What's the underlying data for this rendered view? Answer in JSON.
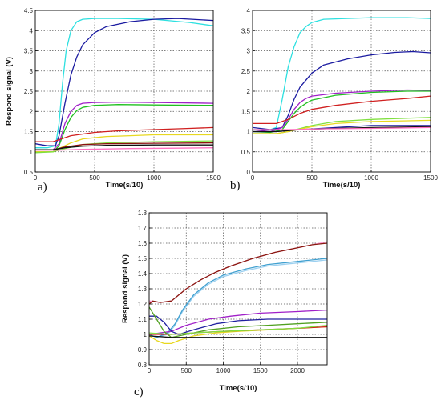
{
  "chart_data": [
    {
      "type": "line",
      "panel_label": "a)",
      "xlabel": "Time(s/10)",
      "ylabel": "Respond signal (V)",
      "xlim": [
        0,
        1500
      ],
      "ylim": [
        0.5,
        4.5
      ],
      "xticks": [
        "0",
        "500",
        "1000",
        "1500"
      ],
      "yticks": [
        "0.5",
        "1",
        "1.5",
        "2",
        "2.5",
        "3",
        "3.5",
        "4",
        "4.5"
      ],
      "grid": true,
      "series": [
        {
          "color": "#2ee0e0",
          "x": [
            0,
            100,
            170,
            200,
            230,
            260,
            300,
            350,
            400,
            500,
            700,
            1000,
            1300,
            1500
          ],
          "y": [
            1.1,
            1.1,
            1.15,
            1.7,
            2.7,
            3.5,
            4.0,
            4.22,
            4.28,
            4.3,
            4.3,
            4.28,
            4.2,
            4.12
          ]
        },
        {
          "color": "#1a1aa0",
          "x": [
            0,
            100,
            170,
            200,
            250,
            300,
            350,
            400,
            500,
            600,
            800,
            1000,
            1200,
            1500
          ],
          "y": [
            1.2,
            1.15,
            1.15,
            1.4,
            2.2,
            2.9,
            3.35,
            3.65,
            3.95,
            4.1,
            4.22,
            4.28,
            4.3,
            4.25
          ]
        },
        {
          "color": "#a020c8",
          "x": [
            0,
            150,
            200,
            250,
            300,
            350,
            400,
            500,
            700,
            1000,
            1500
          ],
          "y": [
            1.05,
            1.05,
            1.2,
            1.7,
            2.0,
            2.15,
            2.2,
            2.22,
            2.23,
            2.22,
            2.2
          ]
        },
        {
          "color": "#20c020",
          "x": [
            0,
            150,
            200,
            250,
            300,
            350,
            400,
            500,
            700,
            1000,
            1500
          ],
          "y": [
            1.0,
            1.0,
            1.15,
            1.55,
            1.85,
            2.02,
            2.1,
            2.15,
            2.17,
            2.16,
            2.15
          ]
        },
        {
          "color": "#d02020",
          "x": [
            0,
            50,
            150,
            200,
            300,
            500,
            700,
            1000,
            1300,
            1500
          ],
          "y": [
            1.25,
            1.25,
            1.25,
            1.3,
            1.4,
            1.48,
            1.52,
            1.55,
            1.58,
            1.6
          ]
        },
        {
          "color": "#e8d820",
          "x": [
            0,
            150,
            200,
            300,
            400,
            600,
            800,
            1000,
            1500
          ],
          "y": [
            1.0,
            1.0,
            1.08,
            1.22,
            1.32,
            1.38,
            1.4,
            1.42,
            1.42
          ]
        },
        {
          "color": "#80e040",
          "x": [
            0,
            150,
            250,
            400,
            600,
            1000,
            1500
          ],
          "y": [
            0.98,
            1.0,
            1.08,
            1.18,
            1.22,
            1.25,
            1.27
          ]
        },
        {
          "color": "#8c1010",
          "x": [
            0,
            150,
            250,
            400,
            600,
            1000,
            1500
          ],
          "y": [
            1.05,
            1.05,
            1.12,
            1.18,
            1.2,
            1.21,
            1.22
          ]
        },
        {
          "color": "#101010",
          "x": [
            0,
            150,
            250,
            400,
            600,
            1000,
            1500
          ],
          "y": [
            1.05,
            1.05,
            1.1,
            1.14,
            1.16,
            1.17,
            1.17
          ]
        },
        {
          "color": "#ff70c0",
          "x": [
            0,
            200,
            400,
            800,
            1200,
            1500
          ],
          "y": [
            1.04,
            1.04,
            1.06,
            1.08,
            1.09,
            1.1
          ]
        }
      ]
    },
    {
      "type": "line",
      "panel_label": "b)",
      "xlabel": "Time(s/10)",
      "ylabel": "",
      "xlim": [
        0,
        1500
      ],
      "ylim": [
        0,
        4
      ],
      "xticks": [
        "0",
        "500",
        "1000",
        "1500"
      ],
      "yticks": [
        "0",
        "0.5",
        "1",
        "1.5",
        "2",
        "2.5",
        "3",
        "3.5",
        "4"
      ],
      "grid": true,
      "series": [
        {
          "color": "#2ee0e0",
          "x": [
            0,
            150,
            200,
            250,
            300,
            350,
            400,
            450,
            500,
            600,
            800,
            1000,
            1300,
            1500
          ],
          "y": [
            1.05,
            1.05,
            1.1,
            1.8,
            2.6,
            3.1,
            3.45,
            3.6,
            3.7,
            3.78,
            3.8,
            3.82,
            3.82,
            3.8
          ]
        },
        {
          "color": "#1a1aa0",
          "x": [
            0,
            150,
            250,
            300,
            350,
            400,
            500,
            600,
            800,
            1000,
            1200,
            1350,
            1500
          ],
          "y": [
            1.1,
            1.05,
            1.1,
            1.4,
            1.8,
            2.1,
            2.45,
            2.65,
            2.8,
            2.9,
            2.96,
            2.98,
            2.95
          ]
        },
        {
          "color": "#a020c8",
          "x": [
            0,
            150,
            250,
            300,
            350,
            400,
            450,
            500,
            700,
            1000,
            1300,
            1500
          ],
          "y": [
            1.05,
            1.0,
            1.1,
            1.3,
            1.55,
            1.72,
            1.82,
            1.88,
            1.95,
            2.0,
            2.03,
            2.02
          ]
        },
        {
          "color": "#20c020",
          "x": [
            0,
            150,
            250,
            300,
            350,
            400,
            450,
            500,
            700,
            1000,
            1300,
            1500
          ],
          "y": [
            1.0,
            0.98,
            1.05,
            1.25,
            1.45,
            1.6,
            1.7,
            1.78,
            1.9,
            1.97,
            2.0,
            2.0
          ]
        },
        {
          "color": "#d02020",
          "x": [
            0,
            100,
            200,
            300,
            400,
            500,
            700,
            1000,
            1300,
            1500
          ],
          "y": [
            1.2,
            1.2,
            1.2,
            1.3,
            1.45,
            1.55,
            1.65,
            1.75,
            1.82,
            1.88
          ]
        },
        {
          "color": "#80e040",
          "x": [
            0,
            200,
            300,
            500,
            700,
            1000,
            1500
          ],
          "y": [
            0.95,
            0.95,
            1.0,
            1.15,
            1.25,
            1.3,
            1.35
          ]
        },
        {
          "color": "#e8d820",
          "x": [
            0,
            200,
            300,
            500,
            700,
            1000,
            1500
          ],
          "y": [
            0.95,
            0.95,
            1.0,
            1.12,
            1.2,
            1.25,
            1.28
          ]
        },
        {
          "color": "#1a1aa0",
          "x": [
            0,
            200,
            400,
            700,
            1000,
            1500
          ],
          "y": [
            1.0,
            1.0,
            1.05,
            1.1,
            1.15,
            1.15
          ]
        },
        {
          "color": "#101010",
          "x": [
            0,
            200,
            400,
            700,
            1000,
            1500
          ],
          "y": [
            1.0,
            1.0,
            1.05,
            1.08,
            1.1,
            1.12
          ]
        },
        {
          "color": "#ff70c0",
          "x": [
            0,
            300,
            600,
            1000,
            1500
          ],
          "y": [
            1.05,
            1.05,
            1.07,
            1.08,
            1.1
          ]
        }
      ]
    },
    {
      "type": "line",
      "panel_label": "c)",
      "xlabel": "Time(s/10)",
      "ylabel": "Respond signal (V)",
      "xlim": [
        0,
        2400
      ],
      "ylim": [
        0.8,
        1.8
      ],
      "xticks": [
        "0",
        "500",
        "1000",
        "1500",
        "2000"
      ],
      "yticks": [
        "0.8",
        "0.9",
        "1",
        "1.1",
        "1.2",
        "1.3",
        "1.4",
        "1.5",
        "1.6",
        "1.7",
        "1.8"
      ],
      "grid": true,
      "series": [
        {
          "color": "#ff9cd8",
          "x": [
            0,
            150,
            300,
            400,
            500,
            700,
            900,
            1100,
            1400,
            1700,
            2000,
            2200,
            2400
          ],
          "y": [
            1.22,
            1.21,
            1.22,
            1.26,
            1.3,
            1.36,
            1.41,
            1.45,
            1.5,
            1.54,
            1.57,
            1.59,
            1.61
          ]
        },
        {
          "color": "#8a1a10",
          "x": [
            0,
            50,
            150,
            300,
            400,
            500,
            700,
            900,
            1100,
            1400,
            1700,
            2000,
            2200,
            2400
          ],
          "y": [
            1.2,
            1.22,
            1.21,
            1.22,
            1.26,
            1.3,
            1.36,
            1.41,
            1.45,
            1.5,
            1.54,
            1.57,
            1.59,
            1.6
          ]
        },
        {
          "color": "#9cd0f0",
          "x": [
            0,
            100,
            250,
            350,
            450,
            600,
            800,
            1000,
            1300,
            1600,
            2000,
            2400
          ],
          "y": [
            1.0,
            0.98,
            1.0,
            1.06,
            1.15,
            1.25,
            1.33,
            1.38,
            1.42,
            1.45,
            1.47,
            1.49
          ]
        },
        {
          "color": "#40a0d0",
          "x": [
            0,
            100,
            250,
            350,
            450,
            600,
            800,
            1000,
            1300,
            1600,
            2000,
            2400
          ],
          "y": [
            1.0,
            0.98,
            1.01,
            1.07,
            1.16,
            1.26,
            1.34,
            1.39,
            1.43,
            1.46,
            1.48,
            1.5
          ]
        },
        {
          "color": "#a020c8",
          "x": [
            0,
            300,
            500,
            800,
            1100,
            1500,
            2000,
            2400
          ],
          "y": [
            1.0,
            1.02,
            1.06,
            1.1,
            1.12,
            1.14,
            1.15,
            1.16
          ]
        },
        {
          "color": "#2020a0",
          "x": [
            0,
            100,
            200,
            300,
            400,
            600,
            900,
            1200,
            1600,
            2000,
            2400
          ],
          "y": [
            1.12,
            1.12,
            1.08,
            1.02,
            1.0,
            1.03,
            1.07,
            1.09,
            1.1,
            1.1,
            1.1
          ]
        },
        {
          "color": "#50a020",
          "x": [
            0,
            100,
            200,
            300,
            500,
            800,
            1200,
            1600,
            2000,
            2400
          ],
          "y": [
            1.18,
            1.1,
            1.02,
            0.98,
            1.0,
            1.03,
            1.05,
            1.06,
            1.07,
            1.08
          ]
        },
        {
          "color": "#e8d820",
          "x": [
            0,
            100,
            200,
            300,
            400,
            600,
            900,
            1200,
            1600,
            2000,
            2400
          ],
          "y": [
            0.99,
            0.96,
            0.94,
            0.94,
            0.96,
            0.99,
            1.01,
            1.02,
            1.03,
            1.04,
            1.05
          ]
        },
        {
          "color": "#d02020",
          "x": [
            0,
            300,
            600,
            1000,
            1500,
            2000,
            2400
          ],
          "y": [
            1.0,
            1.0,
            1.01,
            1.02,
            1.03,
            1.04,
            1.05
          ]
        },
        {
          "color": "#80e040",
          "x": [
            0,
            300,
            600,
            1000,
            1500,
            2000,
            2400
          ],
          "y": [
            1.01,
            1.0,
            1.01,
            1.02,
            1.03,
            1.04,
            1.06
          ]
        },
        {
          "color": "#101010",
          "x": [
            0,
            300,
            600,
            1000,
            1500,
            2000,
            2400
          ],
          "y": [
            0.99,
            0.98,
            0.98,
            0.98,
            0.98,
            0.98,
            0.98
          ]
        }
      ]
    }
  ]
}
